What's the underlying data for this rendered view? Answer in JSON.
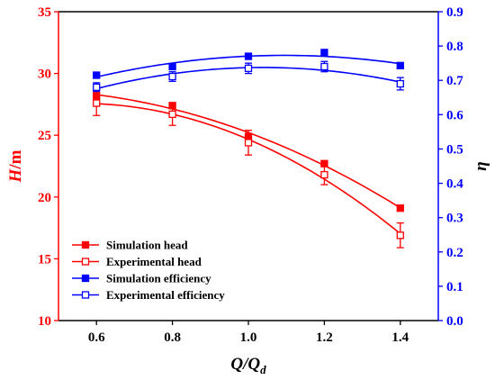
{
  "chart_data": {
    "type": "line",
    "x": [
      0.6,
      0.8,
      1.0,
      1.2,
      1.4
    ],
    "xlim": [
      0.5,
      1.5
    ],
    "xticks": [
      "0.6",
      "0.8",
      "1.0",
      "1.2",
      "1.4"
    ],
    "xlabel": {
      "main": "Q/Q",
      "sub": "d"
    },
    "y_left": {
      "label": {
        "main": "H",
        "unit": "/m"
      },
      "lim": [
        10,
        35
      ],
      "ticks": [
        "10",
        "15",
        "20",
        "25",
        "30",
        "35"
      ],
      "color": "#ff0000"
    },
    "y_right": {
      "label": "η",
      "lim": [
        0.0,
        0.9
      ],
      "ticks": [
        "0.0",
        "0.1",
        "0.2",
        "0.3",
        "0.4",
        "0.5",
        "0.6",
        "0.7",
        "0.8",
        "0.9"
      ],
      "color": "#0000ff"
    },
    "grid": false,
    "legend_position": "bottom-left",
    "series": [
      {
        "name": "Simulation head",
        "axis": "left",
        "color": "#ff0000",
        "marker": "filled-square",
        "values": [
          28.2,
          27.4,
          24.9,
          22.7,
          19.1
        ]
      },
      {
        "name": "Experimental head",
        "axis": "left",
        "color": "#ff0000",
        "marker": "open-square",
        "values": [
          27.6,
          26.7,
          24.4,
          21.8,
          16.9
        ],
        "error": [
          1.0,
          0.9,
          1.0,
          0.8,
          1.0
        ]
      },
      {
        "name": "Simulation efficiency",
        "axis": "right",
        "color": "#0000ff",
        "marker": "filled-square",
        "values": [
          0.715,
          0.74,
          0.77,
          0.781,
          0.743
        ]
      },
      {
        "name": "Experimental efficiency",
        "axis": "right",
        "color": "#0000ff",
        "marker": "open-square",
        "values": [
          0.68,
          0.711,
          0.735,
          0.74,
          0.69
        ],
        "error": [
          0.013,
          0.014,
          0.015,
          0.015,
          0.018
        ]
      }
    ]
  }
}
